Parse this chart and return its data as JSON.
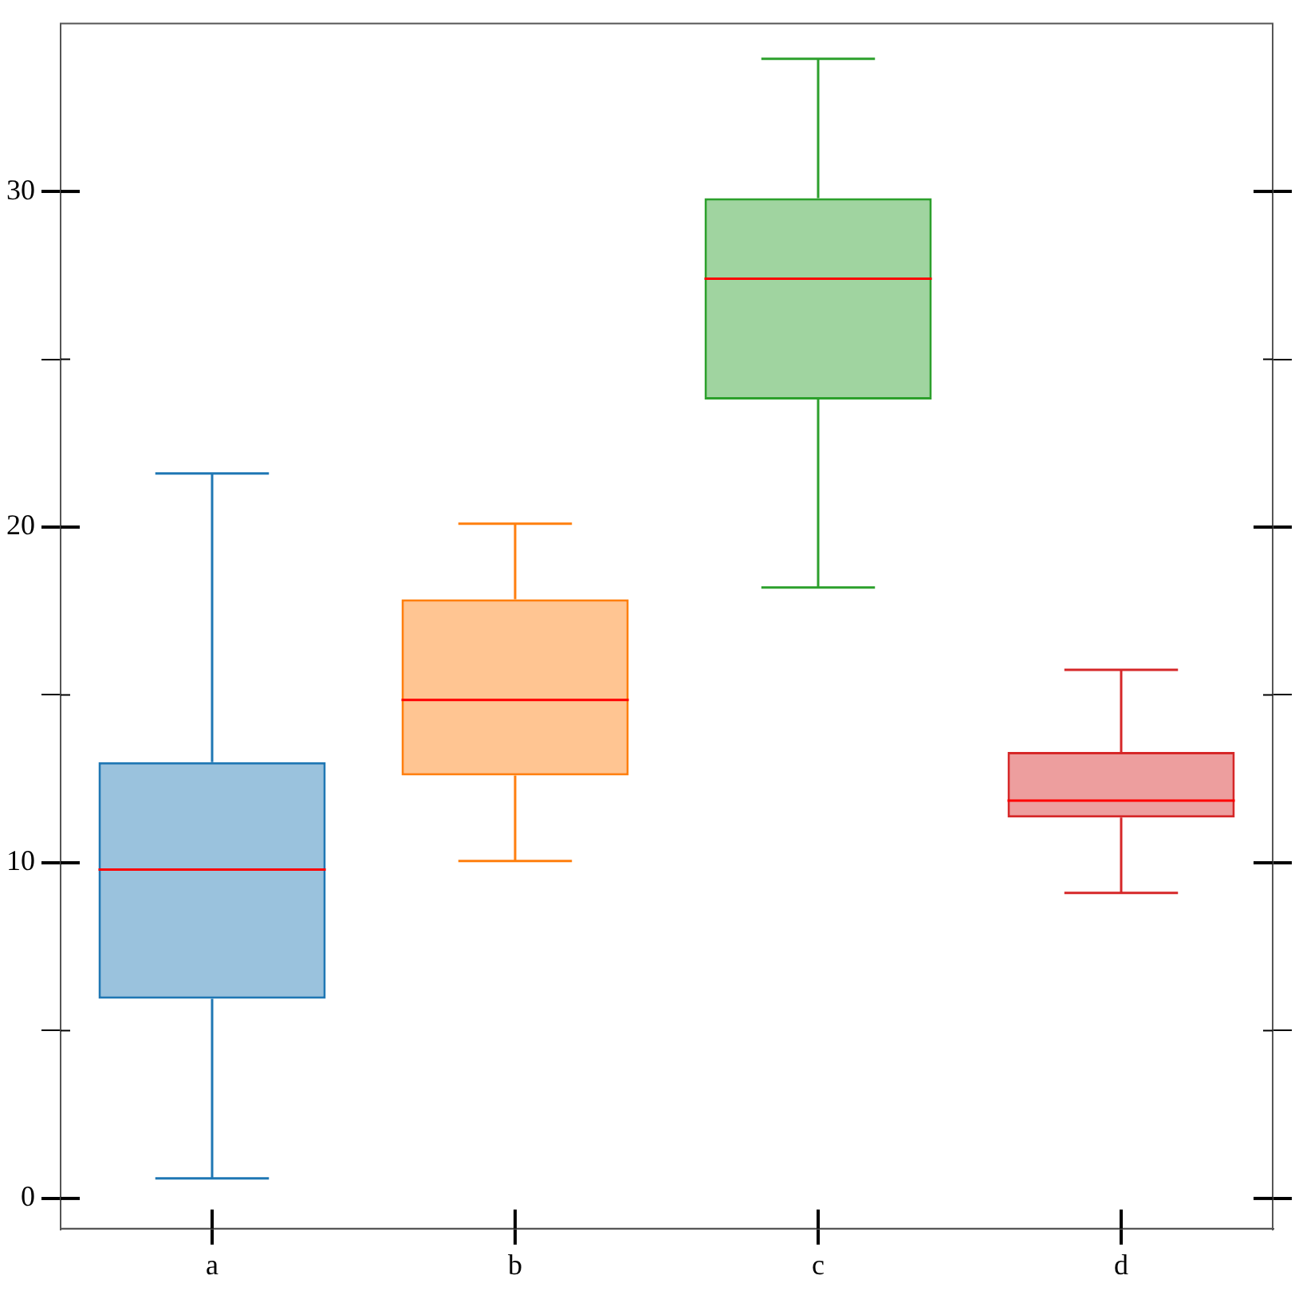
{
  "chart_data": {
    "type": "box",
    "categories": [
      "a",
      "b",
      "c",
      "d"
    ],
    "boxes": [
      {
        "low": 0.6,
        "q1": 5.95,
        "median": 9.8,
        "q3": 13.0,
        "high": 21.6
      },
      {
        "low": 10.05,
        "q1": 12.6,
        "median": 14.85,
        "q3": 17.85,
        "high": 20.1
      },
      {
        "low": 18.2,
        "q1": 23.8,
        "median": 27.4,
        "q3": 29.8,
        "high": 33.95
      },
      {
        "low": 9.1,
        "q1": 11.35,
        "median": 11.85,
        "q3": 13.3,
        "high": 15.75
      }
    ],
    "colors": [
      "#1f77b4",
      "#ff7f0e",
      "#2ca02c",
      "#d62728"
    ],
    "ylim": [
      -0.9,
      35
    ],
    "yticks": [
      0,
      {
        "value": 5,
        "label": null
      },
      10,
      {
        "value": 15,
        "label": null
      },
      20,
      {
        "value": 25,
        "label": null
      },
      30
    ],
    "grid": false,
    "legend": false
  }
}
